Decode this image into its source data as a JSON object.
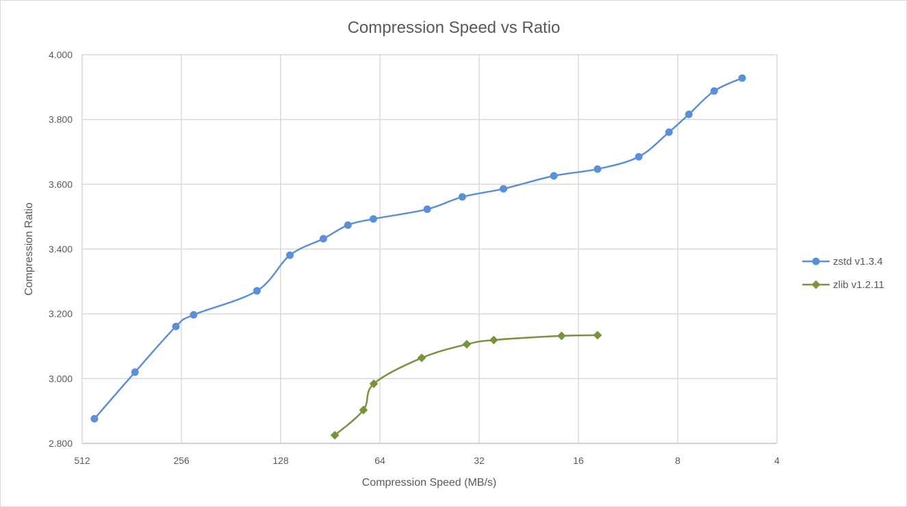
{
  "chart_data": {
    "type": "line",
    "title": "Compression Speed vs Ratio",
    "xlabel": "Compression Speed (MB/s)",
    "ylabel": "Compression Ratio",
    "x_scale": "log2",
    "x_reversed": true,
    "xlim": [
      512,
      4
    ],
    "ylim": [
      2.8,
      4.0
    ],
    "x_ticks": [
      "512",
      "256",
      "128",
      "64",
      "32",
      "16",
      "8",
      "4"
    ],
    "x_tick_values": [
      512,
      256,
      128,
      64,
      32,
      16,
      8,
      4
    ],
    "y_ticks": [
      "2.800",
      "3.000",
      "3.200",
      "3.400",
      "3.600",
      "3.800",
      "4.000"
    ],
    "y_tick_values": [
      2.8,
      3.0,
      3.2,
      3.4,
      3.6,
      3.8,
      4.0
    ],
    "grid": true,
    "smooth": true,
    "legend": "right",
    "series": [
      {
        "name": "zstd v1.3.4",
        "color": "#5B8FD8",
        "marker": "circle",
        "x": [
          470,
          354,
          266,
          235,
          151,
          120,
          95,
          80,
          67,
          46,
          36,
          27,
          19,
          14,
          10.5,
          8.5,
          7.4,
          6.2,
          5.1
        ],
        "y": [
          2.876,
          3.02,
          3.161,
          3.197,
          3.271,
          3.381,
          3.432,
          3.474,
          3.493,
          3.523,
          3.561,
          3.586,
          3.626,
          3.647,
          3.685,
          3.761,
          3.816,
          3.888,
          3.928
        ]
      },
      {
        "name": "zlib v1.2.11",
        "color": "#77933C",
        "marker": "diamond",
        "x": [
          87.7,
          71.8,
          66.8,
          47.8,
          34.9,
          28.9,
          18.0,
          14.0
        ],
        "y": [
          2.825,
          2.903,
          2.984,
          3.064,
          3.106,
          3.119,
          3.132,
          3.134
        ]
      }
    ]
  }
}
